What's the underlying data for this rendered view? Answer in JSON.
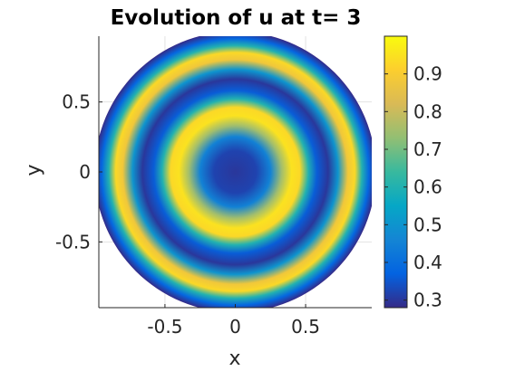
{
  "chart_data": {
    "type": "heatmap",
    "title": "Evolution of u at t= 3",
    "xlabel": "x",
    "ylabel": "y",
    "xlim": [
      -0.97,
      0.97
    ],
    "ylim": [
      -0.97,
      0.97
    ],
    "x_ticks": [
      {
        "value": -0.5,
        "label": "-0.5"
      },
      {
        "value": 0,
        "label": "0"
      },
      {
        "value": 0.5,
        "label": "0.5"
      }
    ],
    "y_ticks": [
      {
        "value": 0.5,
        "label": "0.5"
      },
      {
        "value": 0,
        "label": "0"
      },
      {
        "value": -0.5,
        "label": "-0.5"
      }
    ],
    "grid": true,
    "domain": "unit disk",
    "colormap": "parula",
    "colorbar": {
      "range": [
        0.28,
        1.0
      ],
      "ticks": [
        {
          "value": 0.9,
          "label": "0.9"
        },
        {
          "value": 0.8,
          "label": "0.8"
        },
        {
          "value": 0.7,
          "label": "0.7"
        },
        {
          "value": 0.6,
          "label": "0.6"
        },
        {
          "value": 0.5,
          "label": "0.5"
        },
        {
          "value": 0.4,
          "label": "0.4"
        },
        {
          "value": 0.3,
          "label": "0.3"
        }
      ]
    },
    "radial_profile": [
      {
        "r": 0.0,
        "u": 0.3
      },
      {
        "r": 0.15,
        "u": 0.32
      },
      {
        "r": 0.25,
        "u": 0.45
      },
      {
        "r": 0.33,
        "u": 0.75
      },
      {
        "r": 0.4,
        "u": 0.95
      },
      {
        "r": 0.46,
        "u": 0.93
      },
      {
        "r": 0.52,
        "u": 0.6
      },
      {
        "r": 0.58,
        "u": 0.36
      },
      {
        "r": 0.66,
        "u": 0.3
      },
      {
        "r": 0.73,
        "u": 0.5
      },
      {
        "r": 0.8,
        "u": 0.88
      },
      {
        "r": 0.85,
        "u": 0.93
      },
      {
        "r": 0.9,
        "u": 0.6
      },
      {
        "r": 0.95,
        "u": 0.38
      },
      {
        "r": 1.0,
        "u": 0.28
      }
    ]
  },
  "colors": {
    "parula_stops": [
      "#352a87",
      "#0363e1",
      "#1485d4",
      "#06a7c6",
      "#38b99e",
      "#92bf73",
      "#d9ba56",
      "#fcce2e",
      "#f9fb0e"
    ]
  }
}
